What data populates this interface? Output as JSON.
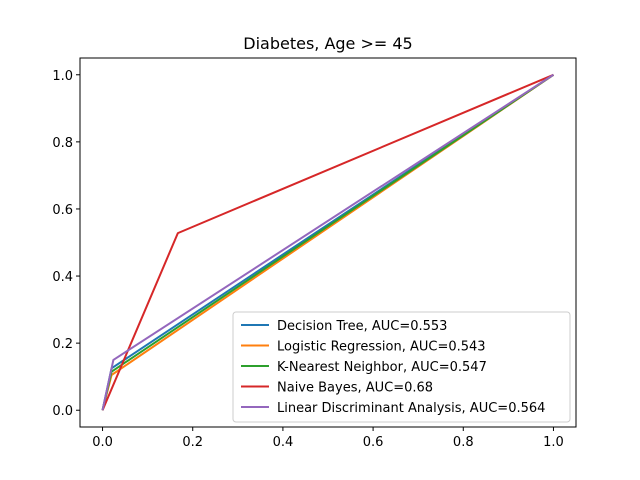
{
  "chart_data": {
    "type": "line",
    "title": "Diabetes, Age >= 45",
    "xlabel": "",
    "ylabel": "",
    "xlim": [
      -0.05,
      1.05
    ],
    "ylim": [
      -0.05,
      1.05
    ],
    "x_ticks": [
      0.0,
      0.2,
      0.4,
      0.6,
      0.8,
      1.0
    ],
    "x_tick_labels": [
      "0.0",
      "0.2",
      "0.4",
      "0.6",
      "0.8",
      "1.0"
    ],
    "y_ticks": [
      0.0,
      0.2,
      0.4,
      0.6,
      0.8,
      1.0
    ],
    "y_tick_labels": [
      "0.0",
      "0.2",
      "0.4",
      "0.6",
      "0.8",
      "1.0"
    ],
    "grid": false,
    "legend_position": "bottom-right",
    "series": [
      {
        "name": "Decision Tree, AUC=0.553",
        "color": "#1f77b4",
        "x": [
          0,
          0.02,
          1
        ],
        "y": [
          0,
          0.125,
          1
        ]
      },
      {
        "name": "Logistic Regression, AUC=0.543",
        "color": "#ff7f0e",
        "x": [
          0,
          0.02,
          1
        ],
        "y": [
          0,
          0.105,
          1
        ]
      },
      {
        "name": "K-Nearest Neighbor, AUC=0.547",
        "color": "#2ca02c",
        "x": [
          0,
          0.02,
          1
        ],
        "y": [
          0,
          0.115,
          1
        ]
      },
      {
        "name": "Naive Bayes, AUC=0.68",
        "color": "#d62728",
        "x": [
          0,
          0.167,
          1
        ],
        "y": [
          0,
          0.528,
          1
        ]
      },
      {
        "name": "Linear Discriminant Analysis, AUC=0.564",
        "color": "#9467bd",
        "x": [
          0,
          0.024,
          1
        ],
        "y": [
          0,
          0.15,
          1
        ]
      }
    ]
  }
}
